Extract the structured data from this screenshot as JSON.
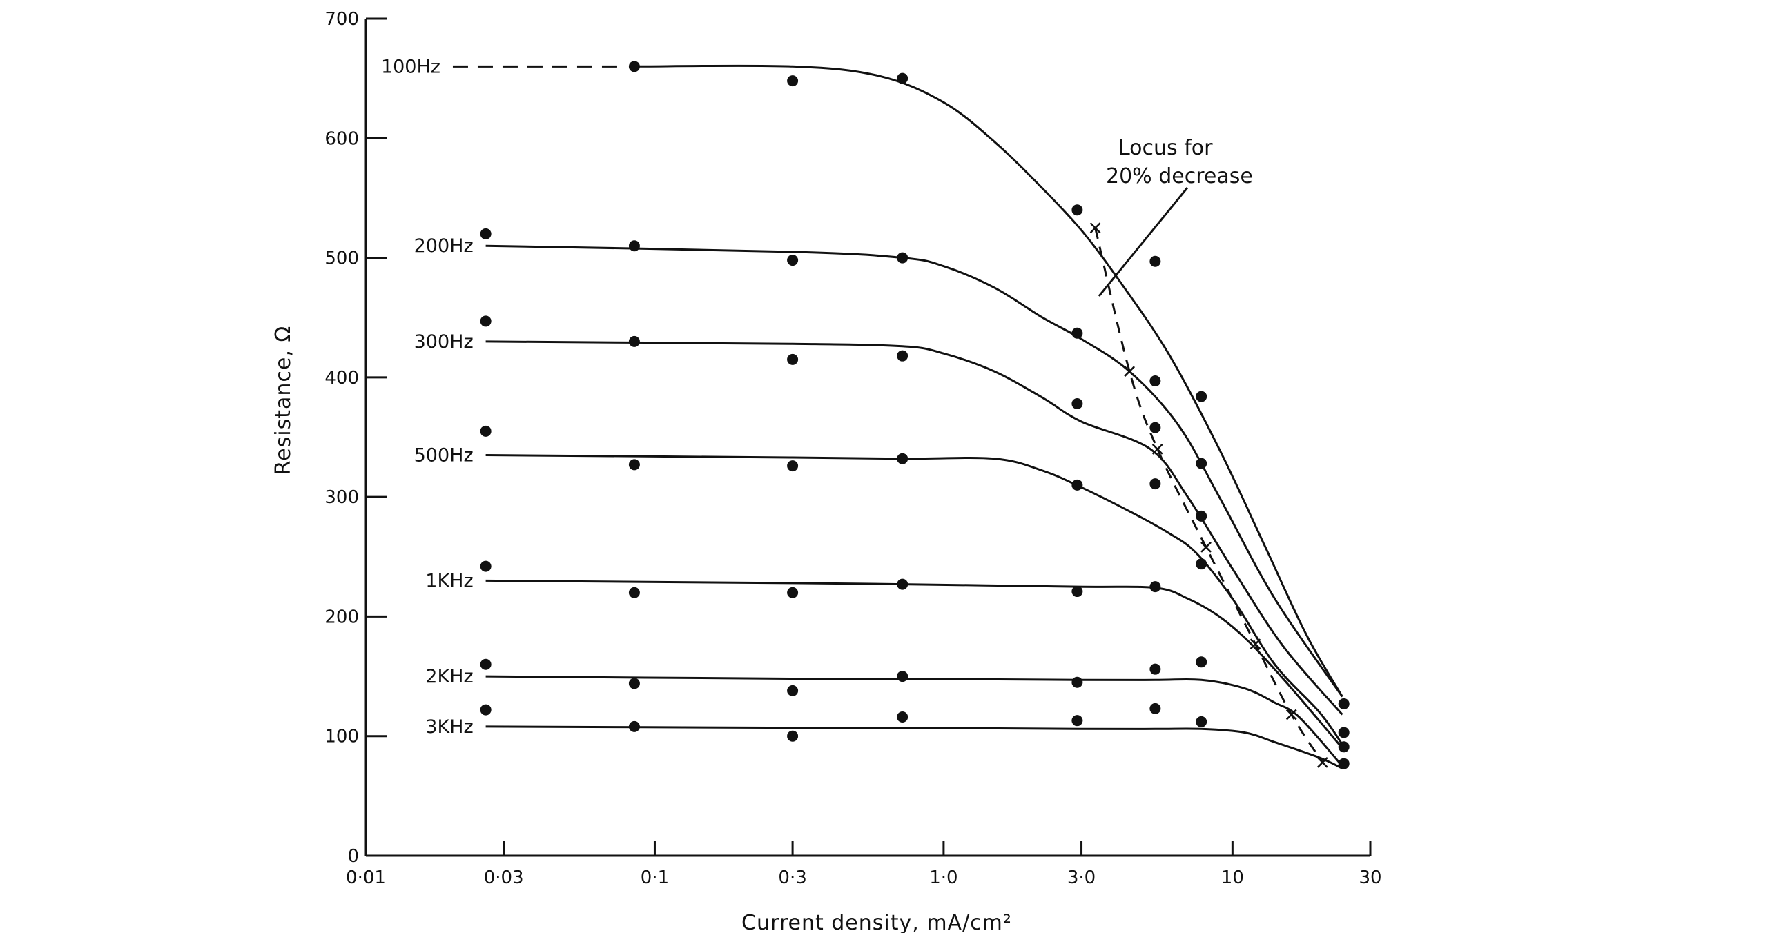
{
  "chart_data": {
    "type": "line",
    "title": "",
    "xlabel": "Current density,   mA/cm²",
    "ylabel": "Resistance,    Ω",
    "x_scale": "log",
    "xlim": [
      0.01,
      30
    ],
    "ylim": [
      0,
      700
    ],
    "grid": false,
    "x_ticks": [
      {
        "value": 0.01,
        "label": "0·01"
      },
      {
        "value": 0.03,
        "label": "0·03"
      },
      {
        "value": 0.1,
        "label": "0·1"
      },
      {
        "value": 0.3,
        "label": "0·3"
      },
      {
        "value": 1.0,
        "label": "1·0"
      },
      {
        "value": 3.0,
        "label": "3·0"
      },
      {
        "value": 10,
        "label": "10"
      },
      {
        "value": 30,
        "label": "30"
      }
    ],
    "y_ticks": [
      {
        "value": 0,
        "label": "0"
      },
      {
        "value": 100,
        "label": "100"
      },
      {
        "value": 200,
        "label": "200"
      },
      {
        "value": 300,
        "label": "300"
      },
      {
        "value": 400,
        "label": "400"
      },
      {
        "value": 500,
        "label": "500"
      },
      {
        "value": 600,
        "label": "600"
      },
      {
        "value": 700,
        "label": "700"
      }
    ],
    "series": [
      {
        "name": "100Hz",
        "dashed_x": [
          0.02,
          0.085
        ],
        "curve": [
          [
            0.085,
            660
          ],
          [
            0.3,
            660
          ],
          [
            0.6,
            652
          ],
          [
            1.0,
            630
          ],
          [
            1.5,
            597
          ],
          [
            2.2,
            558
          ],
          [
            3.0,
            523
          ],
          [
            4.0,
            483
          ],
          [
            6.0,
            420
          ],
          [
            9.0,
            340
          ],
          [
            13.0,
            258
          ],
          [
            18.0,
            185
          ],
          [
            24.0,
            133
          ]
        ],
        "points": [
          [
            0.085,
            660
          ],
          [
            0.3,
            648
          ],
          [
            0.72,
            650
          ],
          [
            2.9,
            540
          ],
          [
            5.4,
            497
          ],
          [
            24.3,
            127
          ]
        ]
      },
      {
        "name": "200Hz",
        "curve": [
          [
            0.026,
            510
          ],
          [
            0.3,
            505
          ],
          [
            0.72,
            500
          ],
          [
            1.0,
            493
          ],
          [
            1.5,
            475
          ],
          [
            2.2,
            450
          ],
          [
            3.0,
            432
          ],
          [
            4.4,
            405
          ],
          [
            6.5,
            360
          ],
          [
            9.0,
            300
          ],
          [
            14.0,
            215
          ],
          [
            24.0,
            133
          ]
        ],
        "points": [
          [
            0.026,
            520
          ],
          [
            0.085,
            510
          ],
          [
            0.3,
            498
          ],
          [
            0.72,
            500
          ],
          [
            2.9,
            437
          ],
          [
            5.4,
            397
          ],
          [
            7.8,
            384
          ],
          [
            24.3,
            103
          ]
        ]
      },
      {
        "name": "300Hz",
        "curve": [
          [
            0.026,
            430
          ],
          [
            0.3,
            428
          ],
          [
            0.72,
            426
          ],
          [
            1.0,
            420
          ],
          [
            1.5,
            405
          ],
          [
            2.2,
            383
          ],
          [
            3.0,
            363
          ],
          [
            5.2,
            340
          ],
          [
            7.0,
            300
          ],
          [
            10.0,
            240
          ],
          [
            15.0,
            175
          ],
          [
            24.0,
            118
          ]
        ],
        "points": [
          [
            0.026,
            447
          ],
          [
            0.085,
            430
          ],
          [
            0.3,
            415
          ],
          [
            0.72,
            418
          ],
          [
            2.9,
            378
          ],
          [
            5.4,
            358
          ],
          [
            7.8,
            328
          ],
          [
            24.3,
            91
          ]
        ]
      },
      {
        "name": "500Hz",
        "curve": [
          [
            0.026,
            335
          ],
          [
            0.3,
            333
          ],
          [
            0.72,
            332
          ],
          [
            1.5,
            332
          ],
          [
            2.2,
            322
          ],
          [
            3.0,
            308
          ],
          [
            4.4,
            288
          ],
          [
            6.0,
            270
          ],
          [
            7.5,
            253
          ],
          [
            10.0,
            215
          ],
          [
            14.0,
            160
          ],
          [
            20.0,
            120
          ],
          [
            24.0,
            93
          ]
        ],
        "points": [
          [
            0.026,
            355
          ],
          [
            0.085,
            327
          ],
          [
            0.3,
            326
          ],
          [
            0.72,
            332
          ],
          [
            2.9,
            310
          ],
          [
            5.4,
            311
          ],
          [
            7.8,
            284
          ],
          [
            24.3,
            77
          ]
        ]
      },
      {
        "name": "1KHz",
        "curve": [
          [
            0.026,
            230
          ],
          [
            0.3,
            228
          ],
          [
            0.72,
            227
          ],
          [
            2.9,
            225
          ],
          [
            5.4,
            224
          ],
          [
            7.0,
            215
          ],
          [
            9.0,
            200
          ],
          [
            11.5,
            178
          ],
          [
            16.0,
            140
          ],
          [
            24.0,
            90
          ]
        ],
        "points": [
          [
            0.026,
            242
          ],
          [
            0.085,
            220
          ],
          [
            0.3,
            220
          ],
          [
            0.72,
            227
          ],
          [
            2.9,
            221
          ],
          [
            5.4,
            225
          ],
          [
            7.8,
            244
          ]
        ]
      },
      {
        "name": "2KHz",
        "curve": [
          [
            0.026,
            150
          ],
          [
            0.3,
            148
          ],
          [
            0.72,
            148
          ],
          [
            2.9,
            147
          ],
          [
            5.4,
            147
          ],
          [
            7.8,
            147
          ],
          [
            11.0,
            140
          ],
          [
            14.0,
            128
          ],
          [
            17.0,
            116
          ],
          [
            24.0,
            75
          ]
        ],
        "points": [
          [
            0.026,
            160
          ],
          [
            0.085,
            144
          ],
          [
            0.3,
            138
          ],
          [
            0.72,
            150
          ],
          [
            2.9,
            145
          ],
          [
            5.4,
            156
          ],
          [
            7.8,
            162
          ]
        ]
      },
      {
        "name": "3KHz",
        "curve": [
          [
            0.026,
            108
          ],
          [
            0.3,
            107
          ],
          [
            0.72,
            107
          ],
          [
            2.9,
            106
          ],
          [
            5.4,
            106
          ],
          [
            7.8,
            106
          ],
          [
            11.0,
            103
          ],
          [
            14.0,
            95
          ],
          [
            20.0,
            82
          ],
          [
            24.0,
            73
          ]
        ],
        "points": [
          [
            0.026,
            122
          ],
          [
            0.085,
            108
          ],
          [
            0.3,
            100
          ],
          [
            0.72,
            116
          ],
          [
            2.9,
            113
          ],
          [
            5.4,
            123
          ],
          [
            7.8,
            112
          ]
        ]
      }
    ],
    "locus": {
      "label_lines": [
        "Locus for",
        "20% decrease"
      ],
      "points": [
        [
          3.35,
          525
        ],
        [
          4.4,
          405
        ],
        [
          5.5,
          340
        ],
        [
          8.1,
          258
        ],
        [
          12.0,
          177
        ],
        [
          16.0,
          118
        ],
        [
          20.5,
          78
        ]
      ]
    }
  }
}
